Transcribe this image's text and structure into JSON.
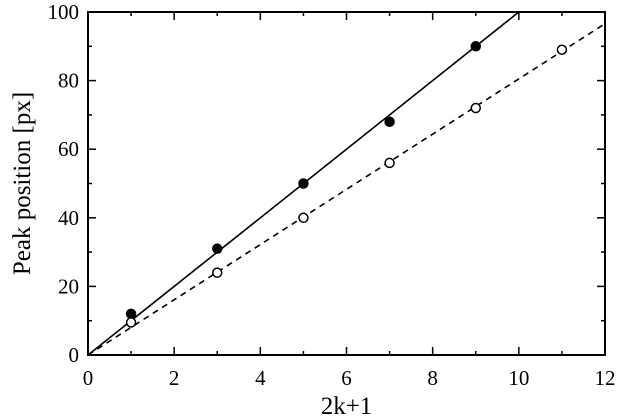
{
  "chart_data": {
    "type": "scatter",
    "xlabel": "2k+1",
    "ylabel": "Peak position [px]",
    "xlim": [
      0,
      12
    ],
    "ylim": [
      0,
      100
    ],
    "xticks": [
      0,
      2,
      4,
      6,
      8,
      10,
      12
    ],
    "yticks": [
      0,
      20,
      40,
      60,
      80,
      100
    ],
    "grid": false,
    "series": [
      {
        "marker": "filled-circle",
        "points": [
          [
            1,
            12
          ],
          [
            3,
            31
          ],
          [
            5,
            50
          ],
          [
            7,
            68
          ],
          [
            9,
            90
          ]
        ],
        "fit": {
          "style": "solid",
          "slope": 10,
          "intercept": 0
        }
      },
      {
        "marker": "open-circle",
        "points": [
          [
            1,
            9.5
          ],
          [
            3,
            24
          ],
          [
            5,
            40
          ],
          [
            7,
            56
          ],
          [
            9,
            72
          ],
          [
            11,
            89
          ]
        ],
        "fit": {
          "style": "dashed",
          "slope": 8.05,
          "intercept": 0
        }
      }
    ],
    "colors": {
      "line": "#000000",
      "background": "#ffffff"
    }
  }
}
